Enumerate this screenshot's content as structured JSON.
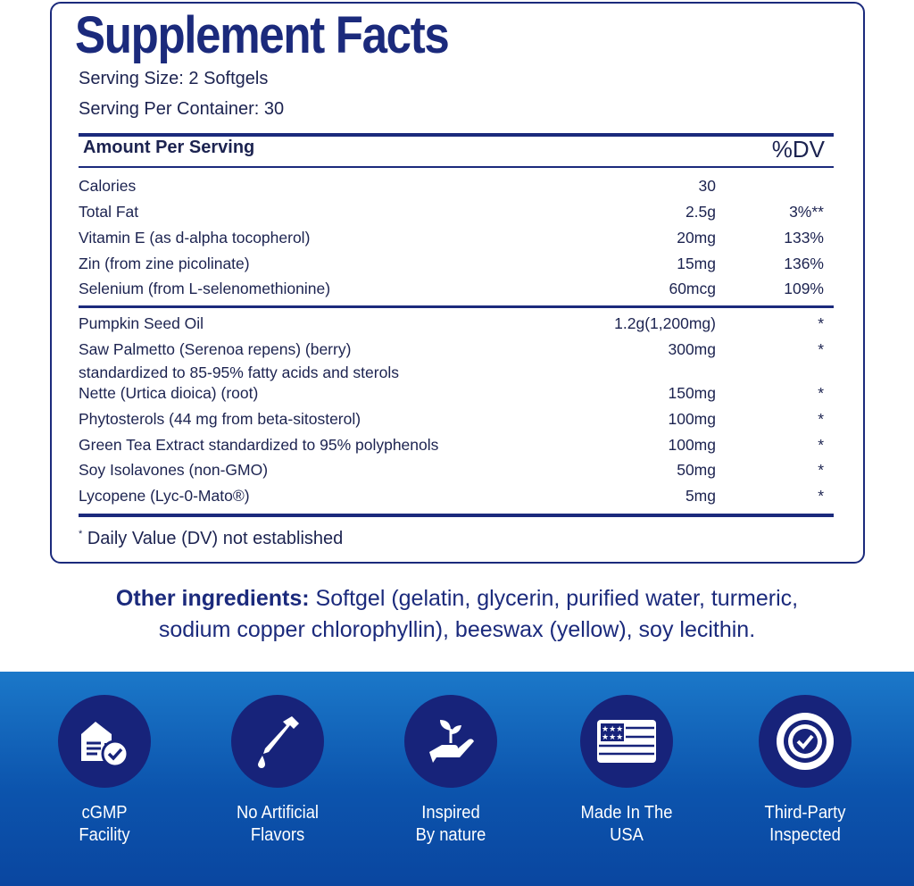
{
  "title": "Supplement Facts",
  "serving_size": "Serving Size: 2 Softgels",
  "servings_per_container": "Serving Per Container: 30",
  "header": {
    "amount": "Amount Per Serving",
    "dv": "%DV"
  },
  "nutrients": [
    {
      "name": "Calories",
      "amount": "30",
      "dv": ""
    },
    {
      "name": "Total Fat",
      "amount": "2.5g",
      "dv": "3%**"
    },
    {
      "name": "Vitamin E (as d-alpha tocopherol)",
      "amount": "20mg",
      "dv": "133%"
    },
    {
      "name": "Zin (from zine picolinate)",
      "amount": "15mg",
      "dv": "136%"
    },
    {
      "name": "Selenium (from L-selenomethionine)",
      "amount": "60mcg",
      "dv": "109%"
    }
  ],
  "ingredients": [
    {
      "name": "Pumpkin Seed Oil",
      "amount": "1.2g(1,200mg)",
      "dv": "*"
    },
    {
      "name": "Saw Palmetto (Serenoa repens) (berry)",
      "amount": "300mg",
      "dv": "*"
    },
    {
      "name": " standardized to 85-95% fatty acids and sterols",
      "amount": "",
      "dv": ""
    },
    {
      "name": "Nette (Urtica dioica) (root)",
      "amount": "150mg",
      "dv": "*"
    },
    {
      "name": "Phytosterols (44 mg from beta-sitosterol)",
      "amount": "100mg",
      "dv": "*"
    },
    {
      "name": "Green Tea Extract standardized to 95% polyphenols",
      "amount": "100mg",
      "dv": "*"
    },
    {
      "name": "Soy Isolavones (non-GMO)",
      "amount": "50mg",
      "dv": "*"
    },
    {
      "name": "Lycopene (Lyc-0-Mato®)",
      "amount": "5mg",
      "dv": "*"
    }
  ],
  "footnote": {
    "mark": "*",
    "text": "Daily Value (DV) not established"
  },
  "other_ingredients": {
    "label": "Other ingredients:",
    "line1": " Softgel (gelatin, glycerin, purified water, turmeric,",
    "line2": "sodium copper chlorophyllin), beeswax (yellow), soy lecithin."
  },
  "badges": [
    {
      "icon": "facility-check-icon",
      "line1": "cGMP",
      "line2": "Facility"
    },
    {
      "icon": "dropper-icon",
      "line1": "No Artificial",
      "line2": "Flavors"
    },
    {
      "icon": "hand-plant-icon",
      "line1": "Inspired",
      "line2": "By nature"
    },
    {
      "icon": "usa-flag-icon",
      "line1": "Made In The",
      "line2": "USA"
    },
    {
      "icon": "seal-check-icon",
      "line1": "Third-Party",
      "line2": "Inspected"
    }
  ],
  "colors": {
    "navy": "#1b2a7c",
    "band_top": "#1b78c9",
    "band_bottom": "#0a46a0",
    "circle": "#17237a"
  }
}
